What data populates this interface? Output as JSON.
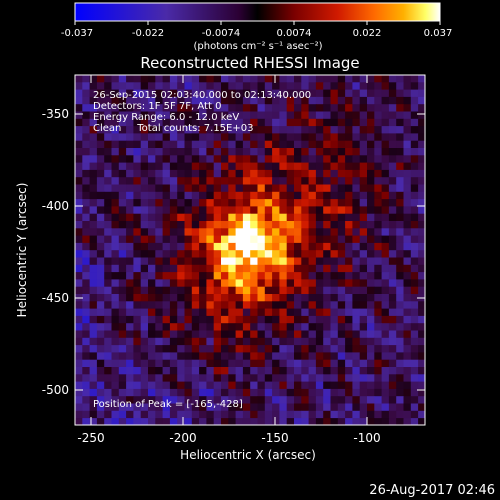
{
  "colorbar": {
    "ticks": [
      "-0.037",
      "-0.022",
      "-0.0074",
      "0.0074",
      "0.022",
      "0.037"
    ],
    "units": "(photons cm⁻² s⁻¹ asec⁻²)",
    "colors": [
      "#0000ff",
      "#4a2aa8",
      "#2b0033",
      "#000000",
      "#7a0000",
      "#d01a00",
      "#ff6a00",
      "#ffb000",
      "#ffff66",
      "#ffffff"
    ]
  },
  "title": "Reconstructed RHESSI Image",
  "info": {
    "line1": "26-Sep-2015 02:03:40.000 to 02:13:40.000",
    "line2": "Detectors: 1F 5F 7F, Att 0",
    "line3": "Energy Range: 6.0 - 12.0 keV",
    "line4": "Clean     Total counts: 7.15E+03"
  },
  "peak_label": "Position of Peak = [-165,-428]",
  "axes": {
    "xlabel": "Heliocentric X (arcsec)",
    "ylabel": "Heliocentric Y (arcsec)",
    "xticks": [
      "-250",
      "-200",
      "-150",
      "-100"
    ],
    "yticks": [
      "-350",
      "-400",
      "-450",
      "-500"
    ]
  },
  "timestamp": "26-Aug-2017 02:46"
}
